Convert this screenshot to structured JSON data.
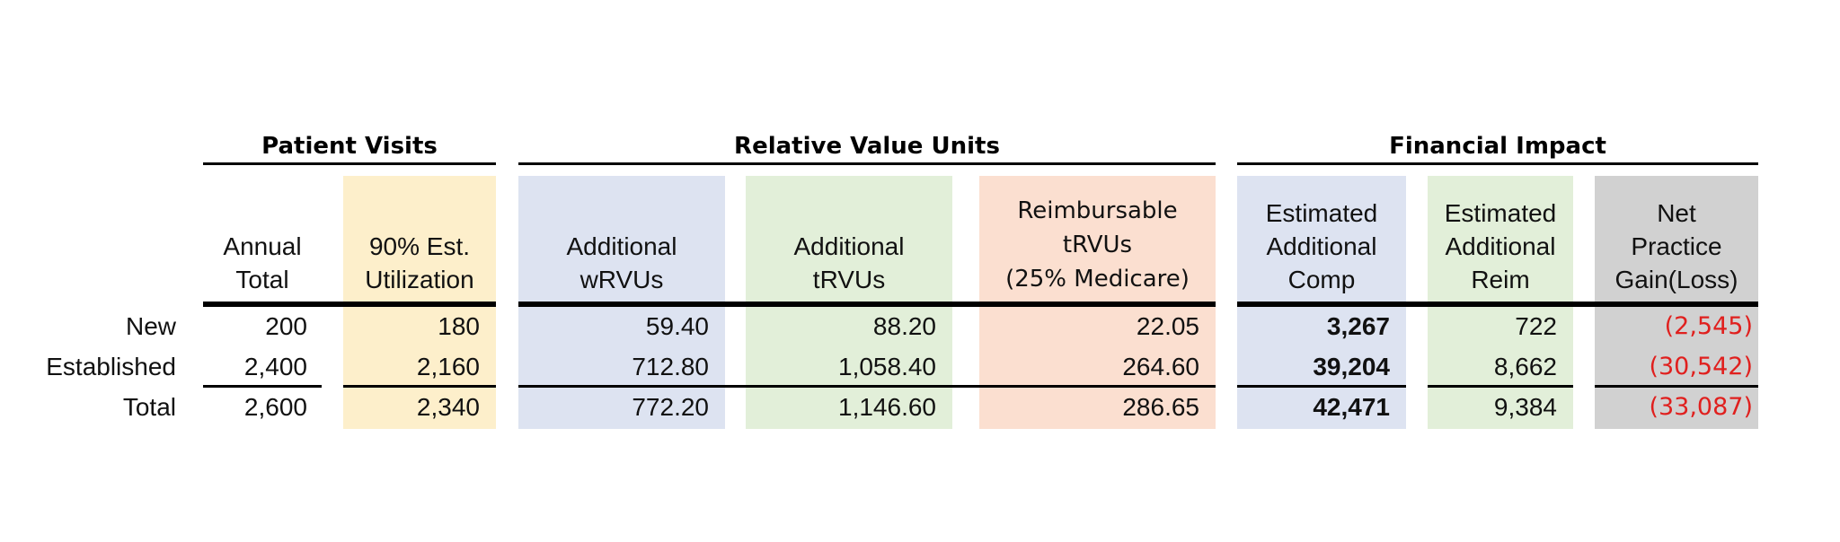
{
  "colors": {
    "utilization_bg": "#fdefcb",
    "wrvu_bg": "#dde3f1",
    "trvu_bg": "#e2efd9",
    "reimb_bg": "#fbdfd0",
    "comp_bg": "#dde3f1",
    "reim_bg": "#e2efd9",
    "net_bg": "#d1d1d1",
    "negative_text": "#e0201e"
  },
  "groups": {
    "patient_visits": "Patient Visits",
    "relative_value_units": "Relative Value Units",
    "financial_impact": "Financial Impact"
  },
  "headers": {
    "annual_total": "Annual\nTotal",
    "utilization": "90% Est.\nUtilization",
    "wrvus": "Additional\nwRVUs",
    "trvus": "Additional\ntRVUs",
    "reimbursable": "Reimbursable\ntRVUs\n(25% Medicare)",
    "comp": "Estimated\nAdditional\nComp",
    "reim": "Estimated\nAdditional\nReim",
    "net": "Net\nPractice\nGain(Loss)"
  },
  "rows": [
    {
      "label": "New",
      "annual_total": "200",
      "utilization": "180",
      "wrvus": "59.40",
      "trvus": "88.20",
      "reimbursable": "22.05",
      "comp": "3,267",
      "reim": "722",
      "net": "(2,545)"
    },
    {
      "label": "Established",
      "annual_total": "2,400",
      "utilization": "2,160",
      "wrvus": "712.80",
      "trvus": "1,058.40",
      "reimbursable": "264.60",
      "comp": "39,204",
      "reim": "8,662",
      "net": "(30,542)"
    },
    {
      "label": "Total",
      "annual_total": "2,600",
      "utilization": "2,340",
      "wrvus": "772.20",
      "trvus": "1,146.60",
      "reimbursable": "286.65",
      "comp": "42,471",
      "reim": "9,384",
      "net": "(33,087)"
    }
  ]
}
